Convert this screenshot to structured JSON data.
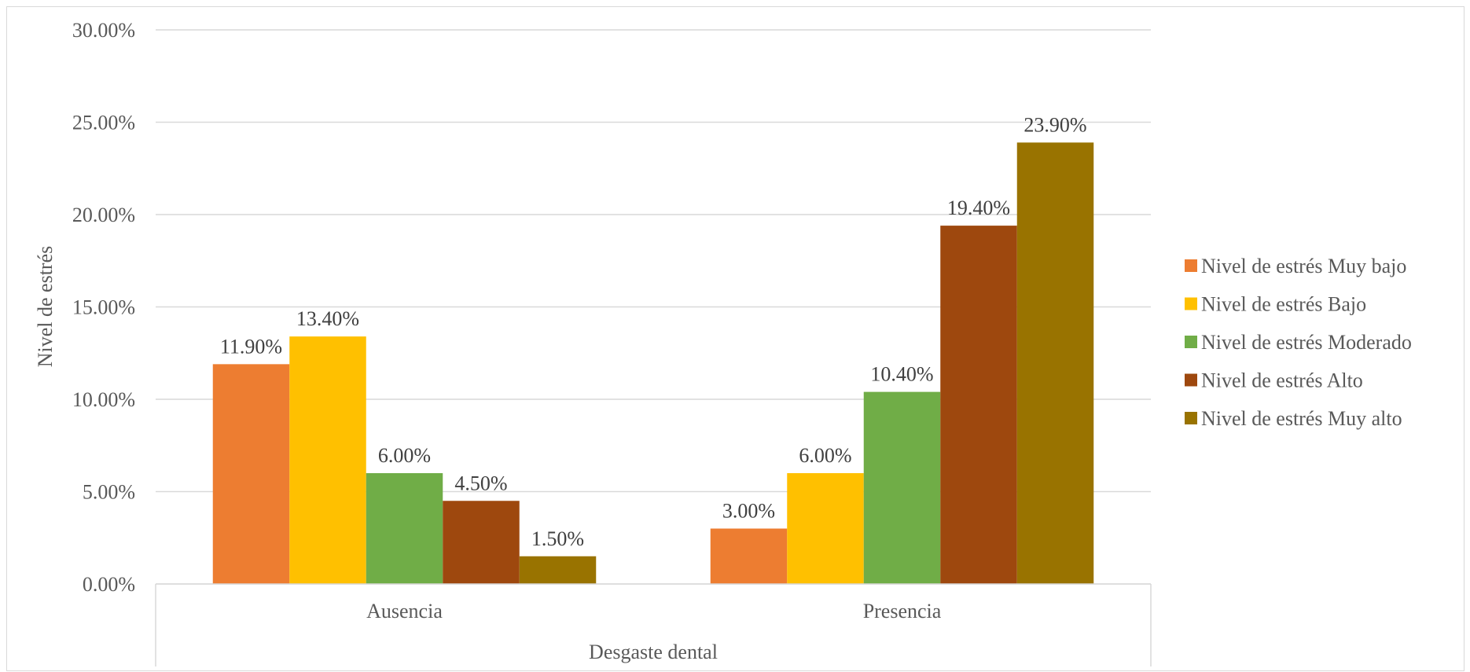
{
  "chart_data": {
    "type": "bar",
    "categories": [
      "Ausencia",
      "Presencia"
    ],
    "series": [
      {
        "name": "Nivel de estrés Muy bajo",
        "color": "#ED7D31",
        "values": [
          11.9,
          3.0
        ],
        "labels": [
          "11.90%",
          "3.00%"
        ]
      },
      {
        "name": "Nivel de estrés Bajo",
        "color": "#FFC000",
        "values": [
          13.4,
          6.0
        ],
        "labels": [
          "13.40%",
          "6.00%"
        ]
      },
      {
        "name": "Nivel de estrés Moderado",
        "color": "#70AD47",
        "values": [
          6.0,
          10.4
        ],
        "labels": [
          "6.00%",
          "10.40%"
        ]
      },
      {
        "name": "Nivel de estrés Alto",
        "color": "#9E480E",
        "values": [
          4.5,
          19.4
        ],
        "labels": [
          "4.50%",
          "19.40%"
        ]
      },
      {
        "name": "Nivel de estrés Muy alto",
        "color": "#997300",
        "values": [
          1.5,
          23.9
        ],
        "labels": [
          "1.50%",
          "23.90%"
        ]
      }
    ],
    "xlabel": "Desgaste dental",
    "ylabel": "Nivel de estrés",
    "ylim": [
      0,
      30
    ],
    "yticks": [
      0,
      5,
      10,
      15,
      20,
      25,
      30
    ],
    "ytick_labels": [
      "0.00%",
      "5.00%",
      "10.00%",
      "15.00%",
      "20.00%",
      "25.00%",
      "30.00%"
    ],
    "grid": true,
    "legend_position": "right"
  }
}
